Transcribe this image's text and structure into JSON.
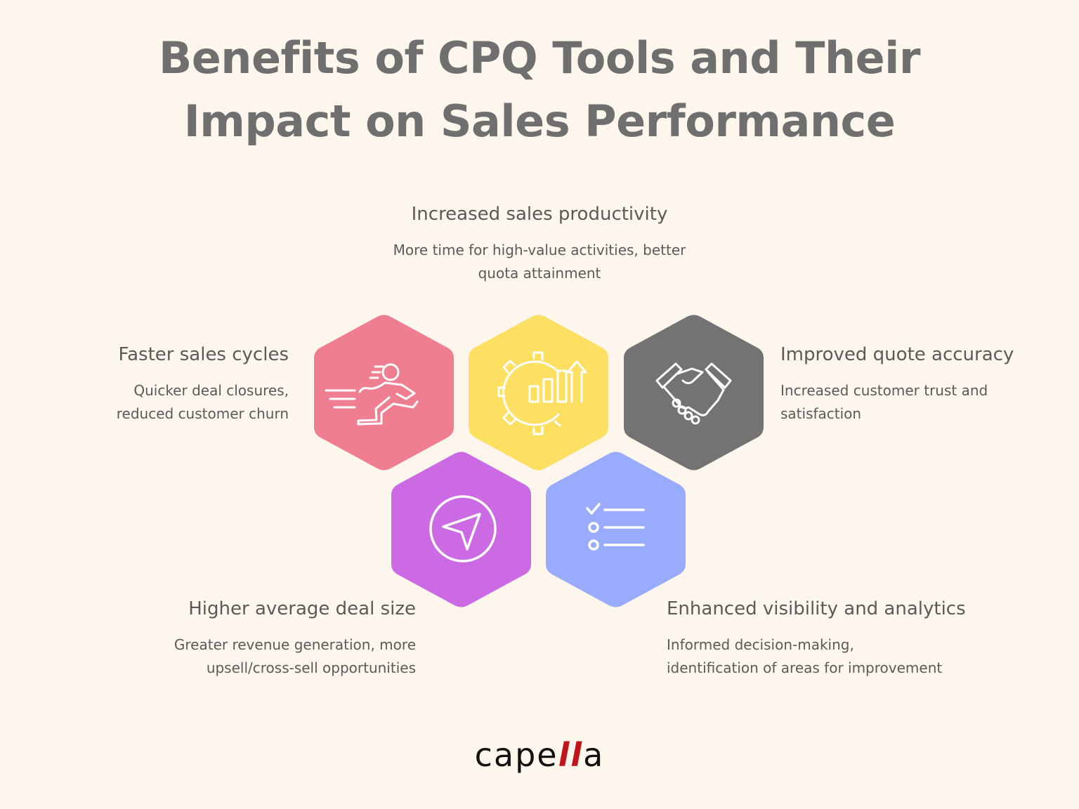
{
  "title": {
    "line1": "Benefits of CPQ Tools and Their",
    "line2": "Impact on Sales Performance"
  },
  "items": [
    {
      "id": "productivity",
      "heading": "Increased sales productivity",
      "desc_lines": [
        "More time for high-value activities, better",
        "quota attainment"
      ],
      "color": "#fde062",
      "icon": "gear-chart-icon"
    },
    {
      "id": "faster-cycles",
      "heading": "Faster sales cycles",
      "desc_lines": [
        "Quicker deal closures,",
        "reduced customer churn"
      ],
      "color": "#ef7f90",
      "icon": "running-person-icon"
    },
    {
      "id": "quote-accuracy",
      "heading": "Improved quote accuracy",
      "desc_lines": [
        "Increased customer trust and",
        "satisfaction"
      ],
      "color": "#737373",
      "icon": "handshake-icon"
    },
    {
      "id": "deal-size",
      "heading": "Higher average deal size",
      "desc_lines": [
        "Greater revenue generation, more",
        "upsell/cross-sell opportunities"
      ],
      "color": "#cc6ae4",
      "icon": "navigation-icon"
    },
    {
      "id": "visibility",
      "heading": "Enhanced visibility and analytics",
      "desc_lines": [
        "Informed decision-making,",
        "identification of areas for improvement"
      ],
      "color": "#98abfc",
      "icon": "checklist-icon"
    }
  ],
  "logo": {
    "prefix": "cape",
    "mark": "ll",
    "suffix": "a"
  }
}
